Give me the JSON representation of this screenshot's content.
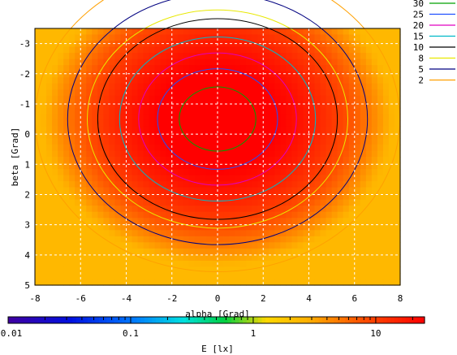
{
  "chart_data": {
    "type": "heatmap",
    "title": "",
    "xlabel": "alpha [Grad]",
    "ylabel": "beta [Grad]",
    "xlim": [
      -8,
      8
    ],
    "ylim": [
      -3.5,
      5
    ],
    "y_reversed": true,
    "x_ticks": [
      "-8",
      "-6",
      "-4",
      "-2",
      "0",
      "2",
      "4",
      "6",
      "8"
    ],
    "y_ticks": [
      "-3",
      "-2",
      "-1",
      "0",
      "1",
      "2",
      "3",
      "4",
      "5"
    ],
    "grid": true,
    "colorbar": {
      "label": "E [lx]",
      "scale": "log",
      "range": [
        0.01,
        25
      ],
      "tick_labels": [
        "0.01",
        "0.1",
        "1",
        "10"
      ]
    },
    "legend": {
      "placement": "top-right",
      "entries": [
        {
          "label": "30",
          "color": "#00a000"
        },
        {
          "label": "25",
          "color": "#2050ff"
        },
        {
          "label": "20",
          "color": "#e000c0"
        },
        {
          "label": "15",
          "color": "#00b8c8"
        },
        {
          "label": "10",
          "color": "#000000"
        },
        {
          "label": "8",
          "color": "#e8e800"
        },
        {
          "label": "5",
          "color": "#000080"
        },
        {
          "label": "2",
          "color": "#ffa000"
        }
      ]
    },
    "field": {
      "peak_lx": 34,
      "peak_alpha": 0,
      "peak_beta": -0.5,
      "corner_min_lx": 3
    }
  }
}
